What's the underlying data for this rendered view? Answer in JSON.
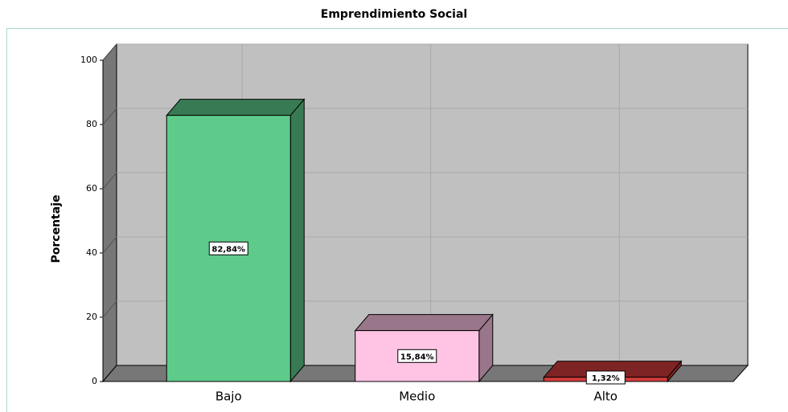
{
  "chart_data": {
    "type": "bar3d",
    "title": "Emprendimiento Social",
    "y_label": "Porcentaje",
    "categories": [
      "Bajo",
      "Medio",
      "Alto"
    ],
    "values": [
      82.84,
      15.84,
      1.32
    ],
    "value_labels": [
      "82,84%",
      "15,84%",
      "1,32%"
    ],
    "colors": [
      "#5ecb8a",
      "#ffc4e4",
      "#d43c3c"
    ],
    "ylim": [
      0,
      105
    ],
    "yticks": [
      0,
      20,
      40,
      60,
      80,
      100
    ],
    "grid": true
  }
}
